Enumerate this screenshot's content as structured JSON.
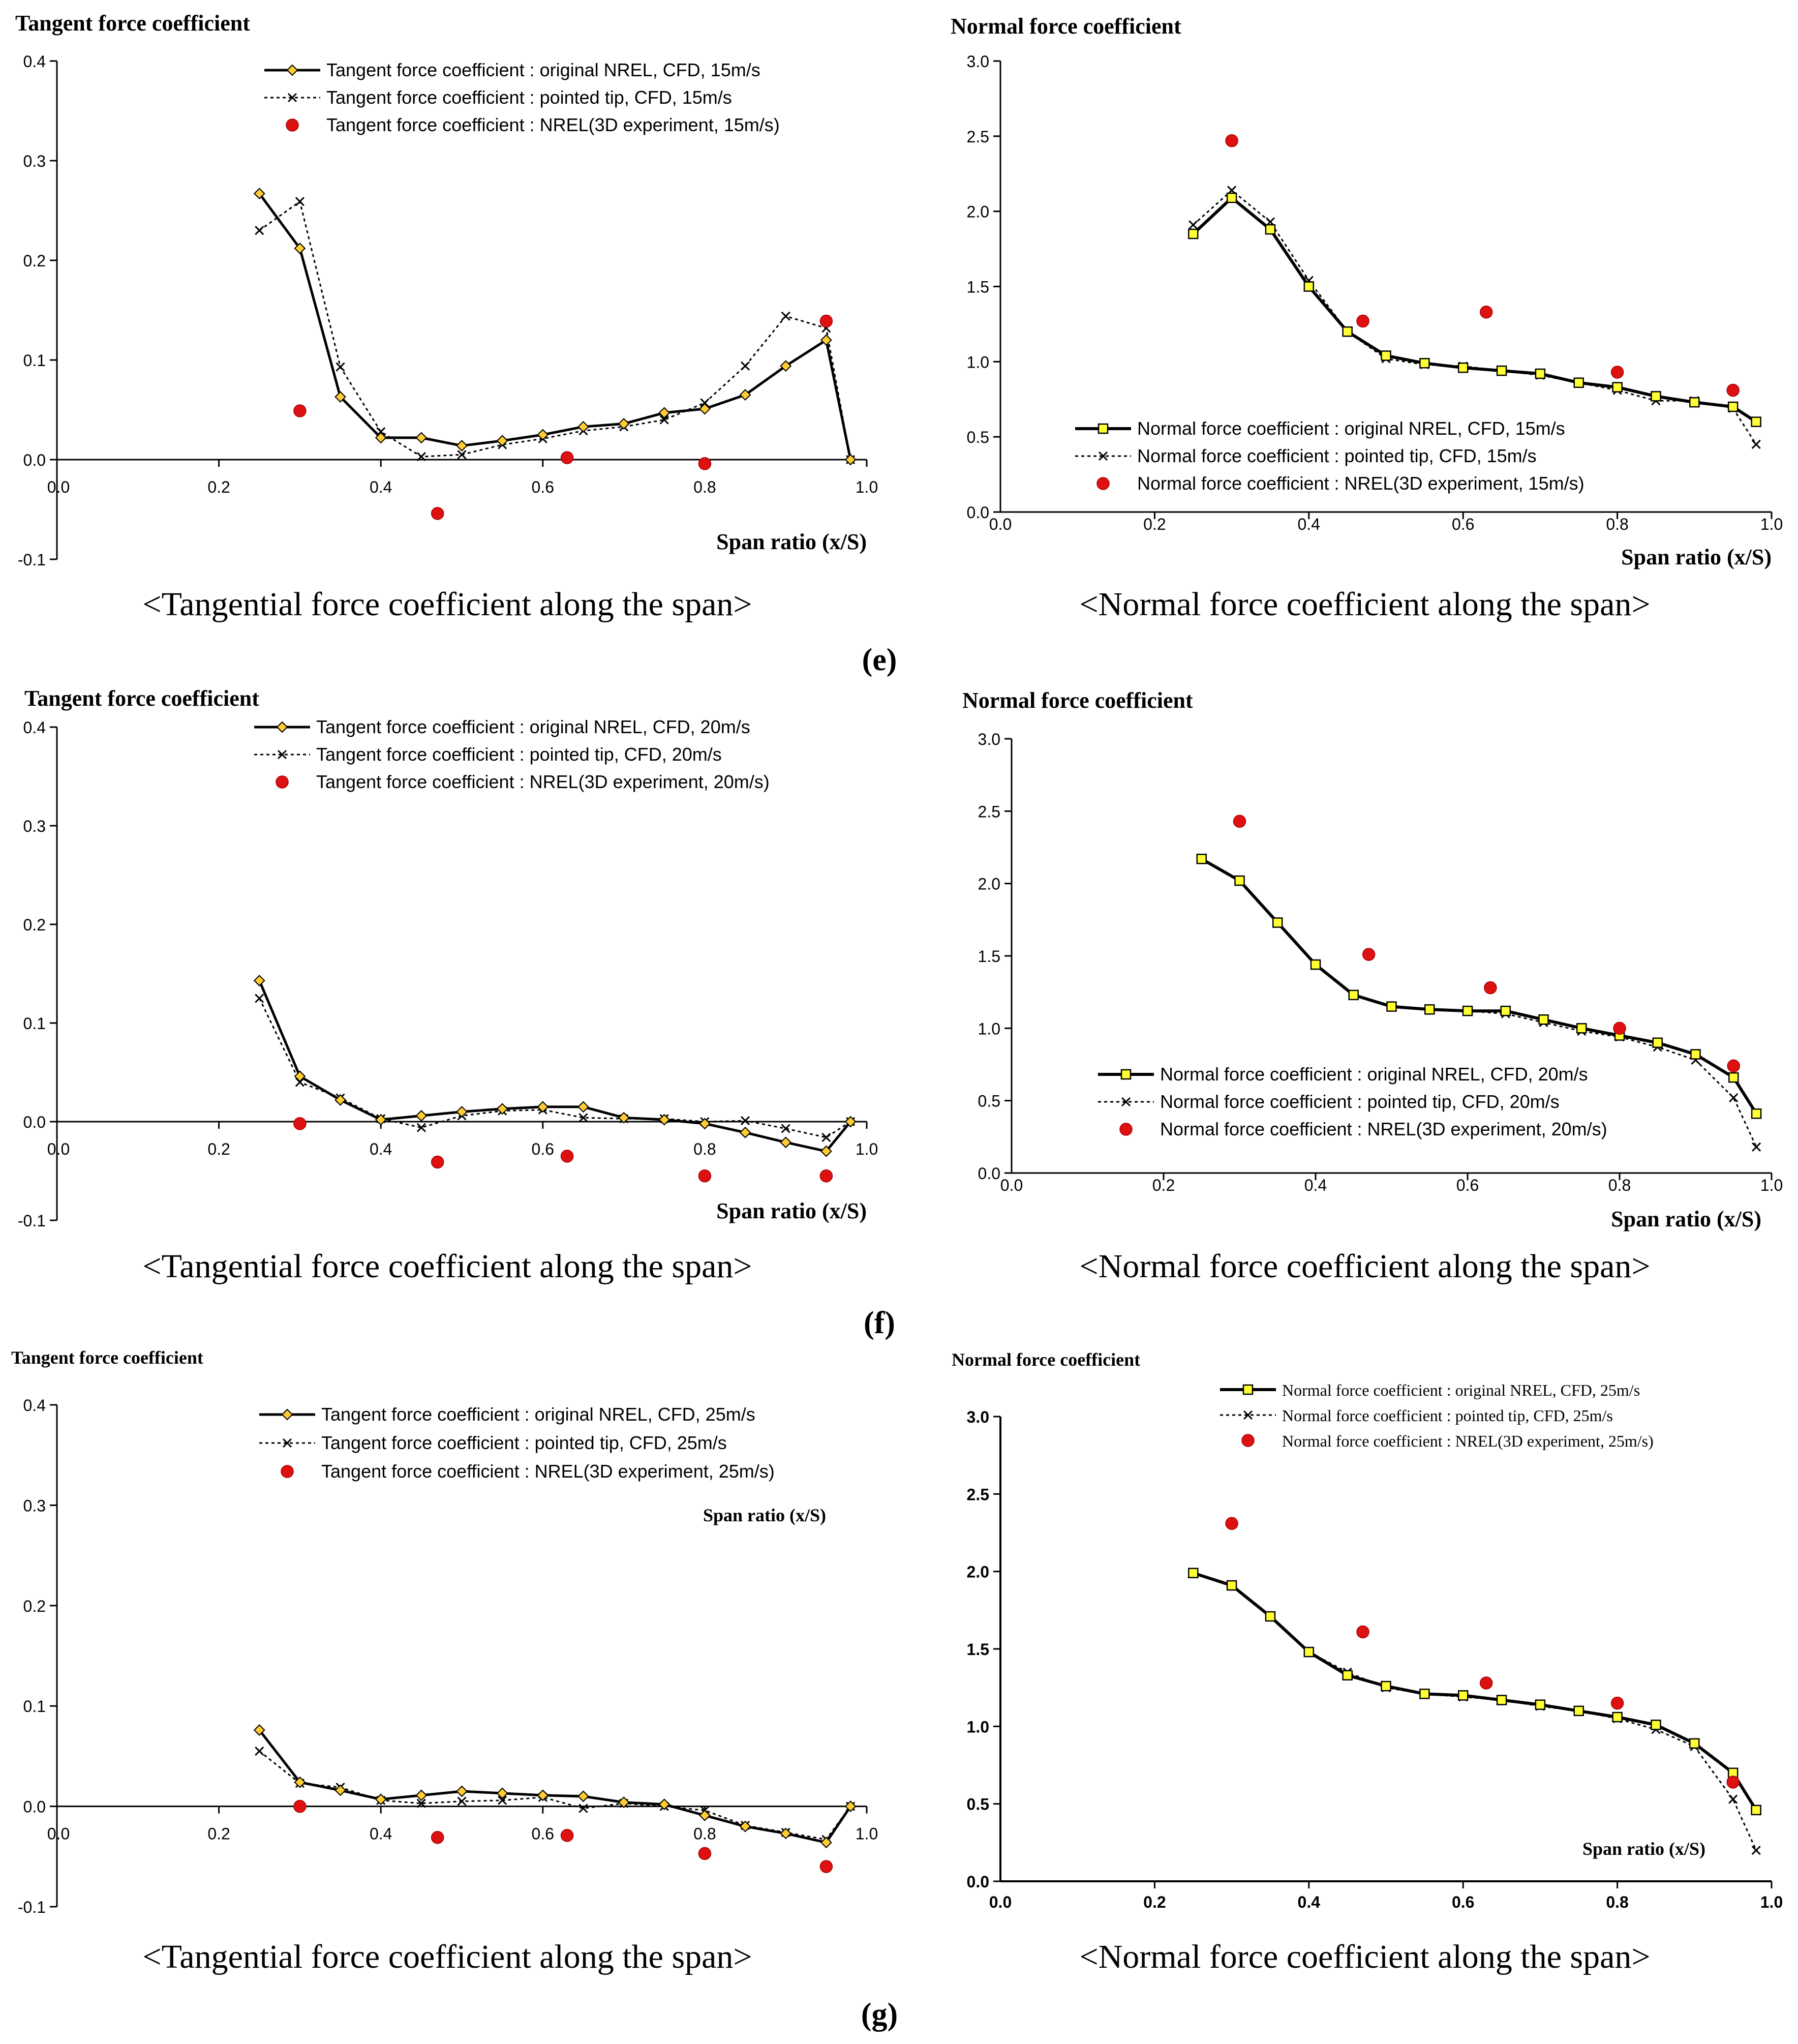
{
  "panel_labels": [
    "(e)",
    "(f)",
    "(g)"
  ],
  "captions": {
    "tangential": "<Tangential force coefficient along the span>",
    "normal": "<Normal force coefficient along the span>"
  },
  "colors": {
    "line": "#000000",
    "diamond_fill": "#ffcc33",
    "square_fill": "#ffff33",
    "experiment": "#dd1111"
  },
  "chart_data": [
    {
      "type": "line",
      "title": "Tangent force coefficient",
      "xlabel": "Span ratio (x/S)",
      "xlim": [
        0,
        1.0
      ],
      "ylim": [
        -0.1,
        0.4
      ],
      "xticks": [
        "0.0",
        "0.2",
        "0.4",
        "0.6",
        "0.8",
        "1.0"
      ],
      "yticks": [
        "-0.1",
        "0.0",
        "0.1",
        "0.2",
        "0.3",
        "0.4"
      ],
      "legend_position": "top-center",
      "series": [
        {
          "name": "Tangent force coefficient : original NREL, CFD, 15m/s",
          "x": [
            0.25,
            0.3,
            0.35,
            0.4,
            0.45,
            0.5,
            0.55,
            0.6,
            0.65,
            0.7,
            0.75,
            0.8,
            0.85,
            0.9,
            0.95,
            0.98
          ],
          "y": [
            0.267,
            0.212,
            0.063,
            0.022,
            0.022,
            0.014,
            0.019,
            0.025,
            0.033,
            0.036,
            0.047,
            0.051,
            0.065,
            0.094,
            0.12,
            0.0
          ]
        },
        {
          "name": "Tangent force coefficient : pointed tip, CFD, 15m/s",
          "x": [
            0.25,
            0.3,
            0.35,
            0.4,
            0.45,
            0.5,
            0.55,
            0.6,
            0.65,
            0.7,
            0.75,
            0.8,
            0.85,
            0.9,
            0.95,
            0.98
          ],
          "y": [
            0.23,
            0.259,
            0.093,
            0.028,
            0.003,
            0.005,
            0.015,
            0.021,
            0.029,
            0.033,
            0.04,
            0.057,
            0.094,
            0.144,
            0.132,
            0.0
          ]
        },
        {
          "name": "Tangent force coefficient : NREL(3D experiment, 15m/s)",
          "x": [
            0.3,
            0.47,
            0.63,
            0.8,
            0.95
          ],
          "y": [
            0.049,
            -0.054,
            0.002,
            -0.004,
            0.139
          ]
        }
      ]
    },
    {
      "type": "line",
      "title": "Normal force coefficient",
      "xlabel": "Span ratio (x/S)",
      "xlim": [
        0,
        1.0
      ],
      "ylim": [
        0,
        3.0
      ],
      "xticks": [
        "0.0",
        "0.2",
        "0.4",
        "0.6",
        "0.8",
        "1.0"
      ],
      "yticks": [
        "0.0",
        "0.5",
        "1.0",
        "1.5",
        "2.0",
        "2.5",
        "3.0"
      ],
      "legend_position": "bottom-center",
      "series": [
        {
          "name": "Normal force coefficient : original NREL, CFD, 15m/s",
          "x": [
            0.25,
            0.3,
            0.35,
            0.4,
            0.45,
            0.5,
            0.55,
            0.6,
            0.65,
            0.7,
            0.75,
            0.8,
            0.85,
            0.9,
            0.95,
            0.98
          ],
          "y": [
            1.85,
            2.09,
            1.88,
            1.5,
            1.2,
            1.04,
            0.99,
            0.96,
            0.94,
            0.92,
            0.86,
            0.83,
            0.77,
            0.73,
            0.7,
            0.6
          ]
        },
        {
          "name": "Normal force coefficient : pointed tip, CFD, 15m/s",
          "x": [
            0.25,
            0.3,
            0.35,
            0.4,
            0.45,
            0.5,
            0.55,
            0.6,
            0.65,
            0.7,
            0.75,
            0.8,
            0.85,
            0.9,
            0.95,
            0.98
          ],
          "y": [
            1.91,
            2.14,
            1.93,
            1.54,
            1.2,
            1.02,
            0.98,
            0.97,
            0.94,
            0.91,
            0.86,
            0.81,
            0.74,
            0.74,
            0.69,
            0.45
          ]
        },
        {
          "name": "Normal force coefficient : NREL(3D experiment, 15m/s)",
          "x": [
            0.3,
            0.47,
            0.63,
            0.8,
            0.95
          ],
          "y": [
            2.47,
            1.27,
            1.33,
            0.93,
            0.81
          ]
        }
      ]
    },
    {
      "type": "line",
      "title": "Tangent force coefficient",
      "xlabel": "Span ratio (x/S)",
      "xlim": [
        0,
        1.0
      ],
      "ylim": [
        -0.1,
        0.4
      ],
      "xticks": [
        "0.0",
        "0.2",
        "0.4",
        "0.6",
        "0.8",
        "1.0"
      ],
      "yticks": [
        "-0.1",
        "0.0",
        "0.1",
        "0.2",
        "0.3",
        "0.4"
      ],
      "legend_position": "top-center",
      "series": [
        {
          "name": "Tangent force coefficient : original NREL, CFD, 20m/s",
          "x": [
            0.25,
            0.3,
            0.35,
            0.4,
            0.45,
            0.5,
            0.55,
            0.6,
            0.65,
            0.7,
            0.75,
            0.8,
            0.85,
            0.9,
            0.95,
            0.98
          ],
          "y": [
            0.143,
            0.046,
            0.022,
            0.002,
            0.006,
            0.01,
            0.013,
            0.015,
            0.015,
            0.004,
            0.002,
            -0.002,
            -0.011,
            -0.021,
            -0.03,
            0.0
          ]
        },
        {
          "name": "Tangent force coefficient : pointed tip, CFD, 20m/s",
          "x": [
            0.25,
            0.3,
            0.35,
            0.4,
            0.45,
            0.5,
            0.55,
            0.6,
            0.65,
            0.7,
            0.75,
            0.8,
            0.85,
            0.9,
            0.95,
            0.98
          ],
          "y": [
            0.125,
            0.04,
            0.024,
            0.003,
            -0.006,
            0.006,
            0.011,
            0.012,
            0.004,
            0.003,
            0.003,
            0.0,
            0.001,
            -0.007,
            -0.016,
            0.0
          ]
        },
        {
          "name": "Tangent force coefficient : NREL(3D experiment, 20m/s)",
          "x": [
            0.3,
            0.47,
            0.63,
            0.8,
            0.95
          ],
          "y": [
            -0.002,
            -0.041,
            -0.035,
            -0.055,
            -0.055
          ]
        }
      ]
    },
    {
      "type": "line",
      "title": "Normal force coefficient",
      "xlabel": "Span ratio (x/S)",
      "xlim": [
        0,
        1.0
      ],
      "ylim": [
        0,
        3.0
      ],
      "xticks": [
        "0.0",
        "0.2",
        "0.4",
        "0.6",
        "0.8",
        "1.0"
      ],
      "yticks": [
        "0.0",
        "0.5",
        "1.0",
        "1.5",
        "2.0",
        "2.5",
        "3.0"
      ],
      "legend_position": "bottom-center",
      "series": [
        {
          "name": "Normal force coefficient : original NREL, CFD, 20m/s",
          "x": [
            0.25,
            0.3,
            0.35,
            0.4,
            0.45,
            0.5,
            0.55,
            0.6,
            0.65,
            0.7,
            0.75,
            0.8,
            0.85,
            0.9,
            0.95,
            0.98
          ],
          "y": [
            2.17,
            2.02,
            1.73,
            1.44,
            1.23,
            1.15,
            1.13,
            1.12,
            1.12,
            1.06,
            1.0,
            0.95,
            0.9,
            0.82,
            0.66,
            0.41
          ]
        },
        {
          "name": "Normal force coefficient : pointed tip, CFD, 20m/s",
          "x": [
            0.25,
            0.3,
            0.35,
            0.4,
            0.45,
            0.5,
            0.55,
            0.6,
            0.65,
            0.7,
            0.75,
            0.8,
            0.85,
            0.9,
            0.95,
            0.98
          ],
          "y": [
            2.17,
            2.02,
            1.73,
            1.44,
            1.23,
            1.15,
            1.13,
            1.12,
            1.1,
            1.04,
            0.98,
            0.94,
            0.87,
            0.78,
            0.52,
            0.18
          ]
        },
        {
          "name": "Normal force coefficient : NREL(3D experiment, 20m/s)",
          "x": [
            0.3,
            0.47,
            0.63,
            0.8,
            0.95
          ],
          "y": [
            2.43,
            1.51,
            1.28,
            1.0,
            0.74
          ]
        }
      ]
    },
    {
      "type": "line",
      "title": "Tangent force coefficient",
      "xlabel": "Span ratio (x/S)",
      "xlim": [
        0,
        1.0
      ],
      "ylim": [
        -0.1,
        0.4
      ],
      "xticks": [
        "0.0",
        "0.2",
        "0.4",
        "0.6",
        "0.8",
        "1.0"
      ],
      "yticks": [
        "-0.1",
        "0.0",
        "0.1",
        "0.2",
        "0.3",
        "0.4"
      ],
      "legend_position": "top-center",
      "series": [
        {
          "name": "Tangent force coefficient : original NREL, CFD, 25m/s",
          "x": [
            0.25,
            0.3,
            0.35,
            0.4,
            0.45,
            0.5,
            0.55,
            0.6,
            0.65,
            0.7,
            0.75,
            0.8,
            0.85,
            0.9,
            0.95,
            0.98
          ],
          "y": [
            0.076,
            0.024,
            0.016,
            0.007,
            0.011,
            0.015,
            0.013,
            0.011,
            0.01,
            0.004,
            0.002,
            -0.009,
            -0.02,
            -0.027,
            -0.036,
            0.0
          ]
        },
        {
          "name": "Tangent force coefficient : pointed tip, CFD, 25m/s",
          "x": [
            0.25,
            0.3,
            0.35,
            0.4,
            0.45,
            0.5,
            0.55,
            0.6,
            0.65,
            0.7,
            0.75,
            0.8,
            0.85,
            0.9,
            0.95,
            0.98
          ],
          "y": [
            0.055,
            0.023,
            0.019,
            0.006,
            0.003,
            0.005,
            0.006,
            0.009,
            -0.002,
            0.003,
            0.0,
            -0.004,
            -0.019,
            -0.026,
            -0.033,
            0.0
          ]
        },
        {
          "name": "Tangent force coefficient : NREL(3D experiment, 25m/s)",
          "x": [
            0.3,
            0.47,
            0.63,
            0.8,
            0.95
          ],
          "y": [
            0.0,
            -0.031,
            -0.029,
            -0.047,
            -0.06
          ]
        }
      ]
    },
    {
      "type": "line",
      "title": "Normal force coefficient",
      "xlabel": "Span ratio (x/S)",
      "xlim": [
        0,
        1.0
      ],
      "ylim": [
        0,
        3.0
      ],
      "xticks": [
        "0.0",
        "0.2",
        "0.4",
        "0.6",
        "0.8",
        "1.0"
      ],
      "yticks": [
        "0.0",
        "0.5",
        "1.0",
        "1.5",
        "2.0",
        "2.5",
        "3.0"
      ],
      "legend_position": "top-right",
      "series": [
        {
          "name": "Normal force coefficient : original NREL, CFD, 25m/s",
          "x": [
            0.25,
            0.3,
            0.35,
            0.4,
            0.45,
            0.5,
            0.55,
            0.6,
            0.65,
            0.7,
            0.75,
            0.8,
            0.85,
            0.9,
            0.95,
            0.98
          ],
          "y": [
            1.99,
            1.91,
            1.71,
            1.48,
            1.33,
            1.26,
            1.21,
            1.2,
            1.17,
            1.14,
            1.1,
            1.06,
            1.01,
            0.89,
            0.7,
            0.46
          ]
        },
        {
          "name": "Normal force coefficient : pointed tip, CFD, 25m/s",
          "x": [
            0.25,
            0.3,
            0.35,
            0.4,
            0.45,
            0.5,
            0.55,
            0.6,
            0.65,
            0.7,
            0.75,
            0.8,
            0.85,
            0.9,
            0.95,
            0.98
          ],
          "y": [
            1.99,
            1.91,
            1.71,
            1.48,
            1.35,
            1.25,
            1.21,
            1.19,
            1.17,
            1.13,
            1.1,
            1.05,
            0.98,
            0.87,
            0.53,
            0.2
          ]
        },
        {
          "name": "Normal force coefficient : NREL(3D experiment, 25m/s)",
          "x": [
            0.3,
            0.47,
            0.63,
            0.8,
            0.95
          ],
          "y": [
            2.31,
            1.61,
            1.28,
            1.15,
            0.64
          ]
        }
      ]
    }
  ]
}
